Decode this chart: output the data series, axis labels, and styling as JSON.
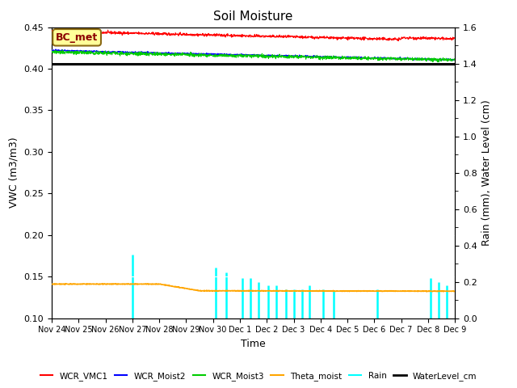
{
  "title": "Soil Moisture",
  "xlabel": "Time",
  "ylabel_left": "VWC (m3/m3)",
  "ylabel_right": "Rain (mm), Water Level (cm)",
  "annotation_text": "BC_met",
  "annotation_color": "#8B0000",
  "annotation_bg": "#FFFF99",
  "annotation_border": "#8B6914",
  "ylim_left": [
    0.1,
    0.45
  ],
  "ylim_right": [
    0.0,
    1.6
  ],
  "yticks_left": [
    0.1,
    0.15,
    0.2,
    0.25,
    0.3,
    0.35,
    0.4,
    0.45
  ],
  "yticks_right": [
    0.0,
    0.2,
    0.4,
    0.6,
    0.8,
    1.0,
    1.2,
    1.4,
    1.6
  ],
  "bg_color": "#E8E8E8",
  "line_colors": {
    "WCR_VMC1": "#FF0000",
    "WCR_Moist2": "#0000FF",
    "WCR_Moist3": "#00CC00",
    "Theta_moist": "#FFA500",
    "Rain": "#00FFFF",
    "WaterLevel_cm": "#000000"
  },
  "legend_labels": [
    "WCR_VMC1",
    "WCR_Moist2",
    "WCR_Moist3",
    "Theta_moist",
    "Rain",
    "WaterLevel_cm"
  ],
  "xtick_labels": [
    "Nov 24",
    "Nov 25",
    "Nov 26",
    "Nov 27",
    "Nov 28",
    "Nov 29",
    "Nov 30",
    "Dec 1",
    "Dec 2",
    "Dec 3",
    "Dec 4",
    "Dec 5",
    "Dec 6",
    "Dec 7",
    "Dec 8",
    "Dec 9"
  ],
  "rain_spike_days": [
    3.0,
    6.1,
    6.5,
    7.1,
    7.4,
    7.7,
    8.05,
    8.35,
    8.7,
    9.0,
    9.3,
    9.6,
    10.1,
    10.5,
    12.1,
    14.1,
    14.4,
    14.7
  ],
  "rain_spike_heights": [
    0.35,
    0.28,
    0.25,
    0.22,
    0.22,
    0.2,
    0.18,
    0.18,
    0.16,
    0.16,
    0.16,
    0.18,
    0.16,
    0.15,
    0.16,
    0.22,
    0.2,
    0.18
  ]
}
